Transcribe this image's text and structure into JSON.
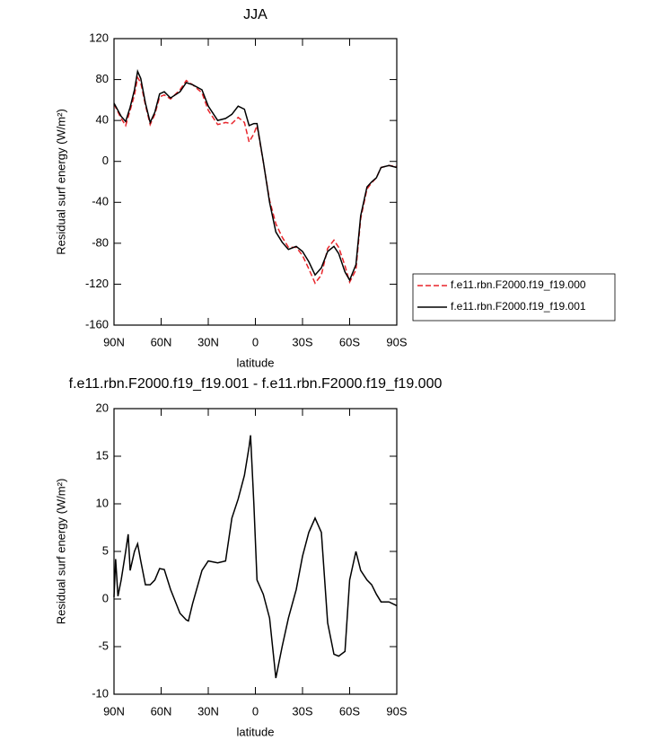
{
  "chart_data": [
    {
      "type": "line",
      "title": "JJA",
      "xlabel": "latitude",
      "ylabel": "Residual surf energy (W/m²)",
      "x": [
        90,
        85.4,
        82.6,
        79.7,
        77,
        75,
        73,
        70,
        67,
        64,
        61,
        58,
        54,
        48,
        44,
        40,
        34,
        30,
        24,
        19,
        15,
        11,
        7,
        4,
        1,
        -1,
        -5,
        -9,
        -13,
        -17,
        -21,
        -26,
        -30,
        -34,
        -38,
        -42,
        -46,
        -50,
        -53,
        -57,
        -60,
        -64,
        -67,
        -71,
        -74,
        -77,
        -80,
        -85,
        -90
      ],
      "xlim": [
        90,
        -90
      ],
      "xticks": [
        {
          "value": 90,
          "label": "90N"
        },
        {
          "value": 60,
          "label": "60N"
        },
        {
          "value": 30,
          "label": "30N"
        },
        0,
        {
          "value": -30,
          "label": "30S"
        },
        {
          "value": -60,
          "label": "60S"
        },
        {
          "value": -90,
          "label": "90S"
        }
      ],
      "ylim": [
        -160,
        120
      ],
      "yticks": [
        -160,
        -120,
        -80,
        -40,
        0,
        40,
        80,
        120
      ],
      "legend": "right",
      "series": [
        {
          "name": "f.e11.rbn.F2000.f19_f19.000",
          "color": "#e8242a",
          "line_style": "dashed",
          "values": [
            56,
            42,
            35,
            50,
            65,
            82,
            77,
            55,
            36,
            46,
            63,
            65,
            61,
            70,
            79,
            75,
            67,
            50,
            36,
            38,
            37,
            43,
            38,
            19,
            27,
            35,
            -0.5,
            -38,
            -61,
            -74,
            -84,
            -84,
            -92,
            -105,
            -119,
            -111,
            -85,
            -77,
            -84,
            -102,
            -118,
            -106,
            -56,
            -27,
            -21,
            -16,
            -6,
            -4,
            -5
          ]
        },
        {
          "name": "f.e11.rbn.F2000.f19_f19.001",
          "color": "#000000",
          "line_style": "solid",
          "values": [
            57,
            44,
            39,
            53,
            70,
            88,
            81,
            57,
            38,
            48,
            66,
            68,
            62,
            68,
            77,
            75,
            70,
            54,
            40,
            42,
            46,
            54,
            51,
            35,
            37,
            37,
            0,
            -40,
            -69,
            -79,
            -86,
            -83,
            -88,
            -98,
            -111,
            -104,
            -88,
            -83,
            -90,
            -108,
            -116,
            -101,
            -53,
            -25,
            -20,
            -16,
            -6,
            -4,
            -6
          ]
        }
      ]
    },
    {
      "type": "line",
      "title": "f.e11.rbn.F2000.f19_f19.001 - f.e11.rbn.F2000.f19_f19.000",
      "xlabel": "latitude",
      "ylabel": "Residual surf energy (W/m²)",
      "x": [
        90,
        89,
        87.5,
        85.4,
        82.6,
        81,
        79.7,
        77,
        75,
        73,
        70,
        67,
        64,
        61,
        58,
        54,
        48,
        44,
        42.6,
        40,
        34,
        30,
        24,
        19,
        15,
        11,
        7,
        4,
        3.1,
        1,
        -1,
        -5,
        -9,
        -13,
        -17,
        -21,
        -26,
        -30,
        -34,
        -38,
        -42,
        -46,
        -50,
        -53,
        -57,
        -60,
        -64,
        -67,
        -71,
        -74,
        -77,
        -80,
        -85,
        -90
      ],
      "xlim": [
        90,
        -90
      ],
      "xticks": [
        {
          "value": 90,
          "label": "90N"
        },
        {
          "value": 60,
          "label": "60N"
        },
        {
          "value": 30,
          "label": "30N"
        },
        0,
        {
          "value": -30,
          "label": "30S"
        },
        {
          "value": -60,
          "label": "60S"
        },
        {
          "value": -90,
          "label": "90S"
        }
      ],
      "ylim": [
        -10,
        20
      ],
      "yticks": [
        -10,
        -5,
        0,
        5,
        10,
        15,
        20
      ],
      "series": [
        {
          "color": "#000000",
          "line_style": "solid",
          "values": [
            0.2,
            4.2,
            0.3,
            2,
            5,
            6.8,
            3,
            5,
            5.8,
            4,
            1.5,
            1.5,
            2,
            3.2,
            3.1,
            1,
            -1.5,
            -2.2,
            -2.3,
            -0.5,
            3,
            4,
            3.8,
            4,
            8.5,
            10.5,
            13,
            16,
            17.2,
            10,
            2,
            0.5,
            -2,
            -8.3,
            -5,
            -2,
            1,
            4.5,
            7,
            8.5,
            7,
            -2.5,
            -5.8,
            -6,
            -5.5,
            2,
            5,
            3,
            2,
            1.5,
            0.5,
            -0.3,
            -0.3,
            -0.7
          ]
        }
      ]
    }
  ]
}
